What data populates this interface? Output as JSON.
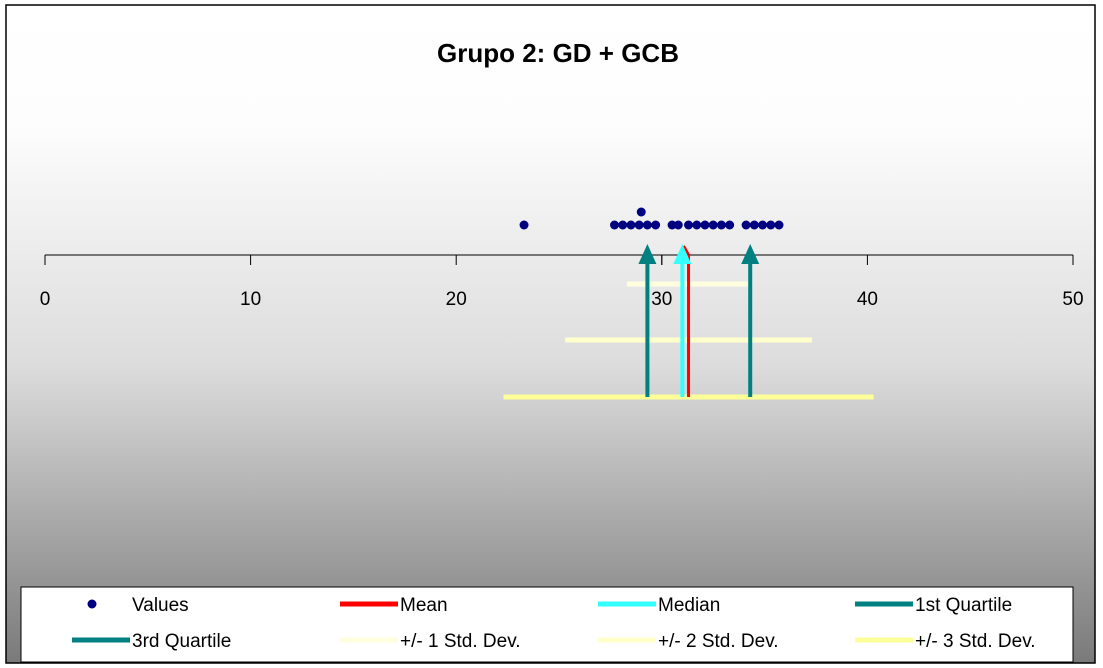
{
  "chart_data": {
    "type": "scatter",
    "title": "Grupo 2: GD + GCB",
    "xlim": [
      0,
      50
    ],
    "x_ticks": [
      "0",
      "10",
      "20",
      "30",
      "40",
      "50"
    ],
    "minor_tick_at": 30,
    "grid": false,
    "legend_position": "bottom",
    "values": [
      {
        "x": 23.3,
        "stack": 0
      },
      {
        "x": 27.7,
        "stack": 0
      },
      {
        "x": 28.1,
        "stack": 0
      },
      {
        "x": 28.5,
        "stack": 0
      },
      {
        "x": 28.9,
        "stack": 0
      },
      {
        "x": 29.3,
        "stack": 0
      },
      {
        "x": 29.0,
        "stack": 1
      },
      {
        "x": 29.7,
        "stack": 0
      },
      {
        "x": 30.5,
        "stack": 0
      },
      {
        "x": 30.8,
        "stack": 0
      },
      {
        "x": 31.3,
        "stack": 0
      },
      {
        "x": 31.7,
        "stack": 0
      },
      {
        "x": 32.1,
        "stack": 0
      },
      {
        "x": 32.5,
        "stack": 0
      },
      {
        "x": 32.9,
        "stack": 0
      },
      {
        "x": 33.3,
        "stack": 0
      },
      {
        "x": 34.1,
        "stack": 0
      },
      {
        "x": 34.5,
        "stack": 0
      },
      {
        "x": 34.9,
        "stack": 0
      },
      {
        "x": 35.3,
        "stack": 0
      },
      {
        "x": 35.7,
        "stack": 0
      }
    ],
    "mean": 31.3,
    "median": 31.0,
    "q1": 29.3,
    "q3": 34.3,
    "std_bands": [
      {
        "name": "+/- 1 Std. Dev.",
        "low": 28.3,
        "high": 34.3
      },
      {
        "name": "+/- 2 Std. Dev.",
        "low": 25.3,
        "high": 37.3
      },
      {
        "name": "+/- 3 Std. Dev.",
        "low": 22.3,
        "high": 40.3
      }
    ],
    "series": [
      {
        "name": "Values",
        "color": "#000080",
        "marker": "dot"
      },
      {
        "name": "Mean",
        "color": "#ff0000",
        "marker": "line"
      },
      {
        "name": "Median",
        "color": "#33ffff",
        "marker": "line"
      },
      {
        "name": "1st Quartile",
        "color": "#008080",
        "marker": "line"
      },
      {
        "name": "3rd Quartile",
        "color": "#008080",
        "marker": "line"
      },
      {
        "name": "+/- 1 Std. Dev.",
        "color": "#ffffe0",
        "marker": "line"
      },
      {
        "name": "+/- 2 Std. Dev.",
        "color": "#ffffcc",
        "marker": "line"
      },
      {
        "name": "+/- 3 Std. Dev.",
        "color": "#ffff99",
        "marker": "line"
      }
    ]
  }
}
